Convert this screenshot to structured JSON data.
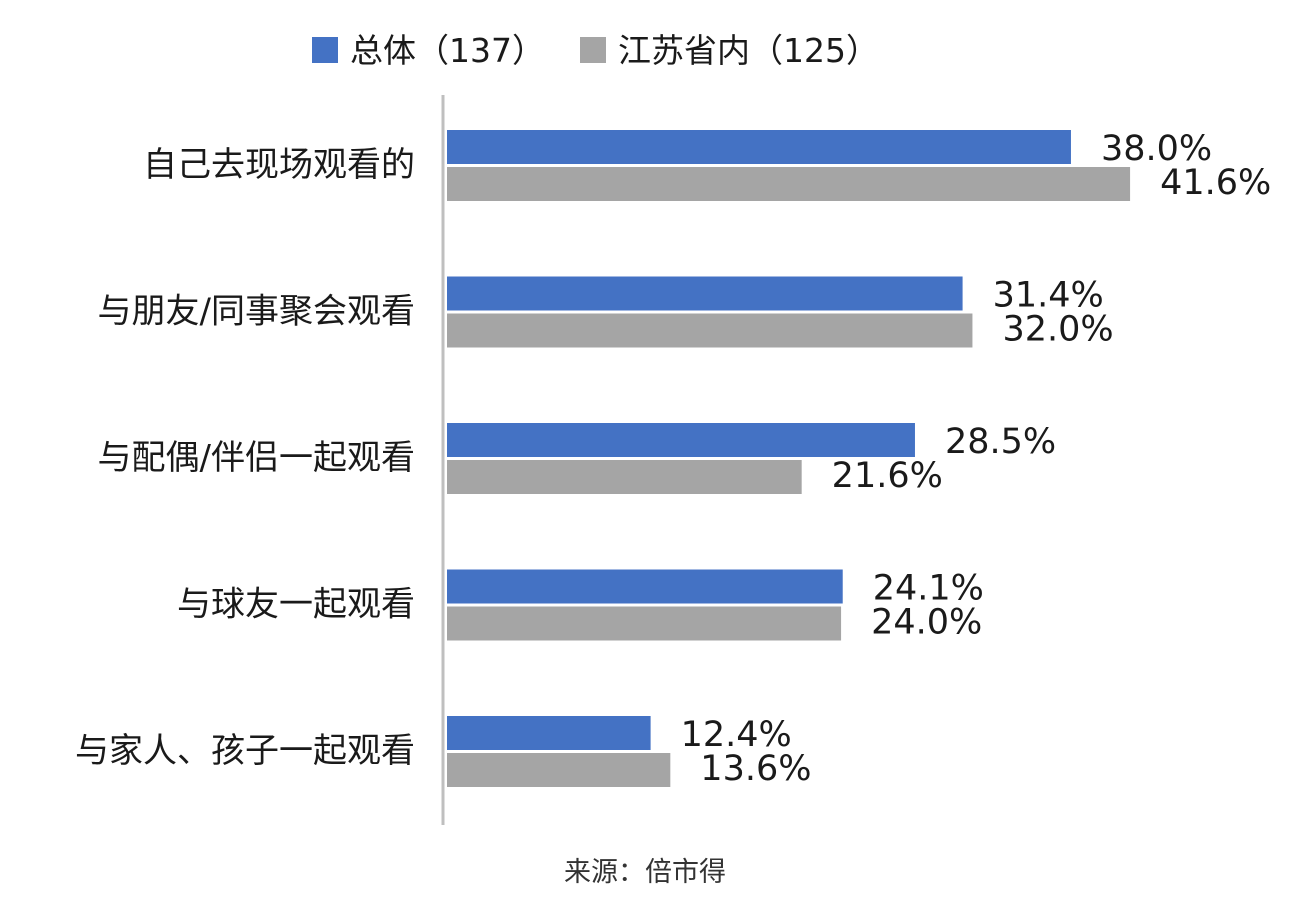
{
  "chart_data": {
    "type": "bar",
    "orientation": "horizontal",
    "categories": [
      "自己去现场观看的",
      "与朋友/同事聚会观看",
      "与配偶/伴侣一起观看",
      "与球友一起观看",
      "与家人、孩子一起观看"
    ],
    "series": [
      {
        "name": "总体（137）",
        "color": "#4472c4",
        "values": [
          38.0,
          31.4,
          28.5,
          24.1,
          12.4
        ],
        "labels": [
          "38.0%",
          "31.4%",
          "28.5%",
          "24.1%",
          "12.4%"
        ]
      },
      {
        "name": "江苏省内（125）",
        "color": "#a5a5a5",
        "values": [
          41.6,
          32.0,
          21.6,
          24.0,
          13.6
        ],
        "labels": [
          "41.6%",
          "32.0%",
          "21.6%",
          "24.0%",
          "13.6%"
        ]
      }
    ],
    "legend_position": "top",
    "grid": false,
    "xlim": [
      0,
      50
    ],
    "source": "来源：倍市得"
  }
}
